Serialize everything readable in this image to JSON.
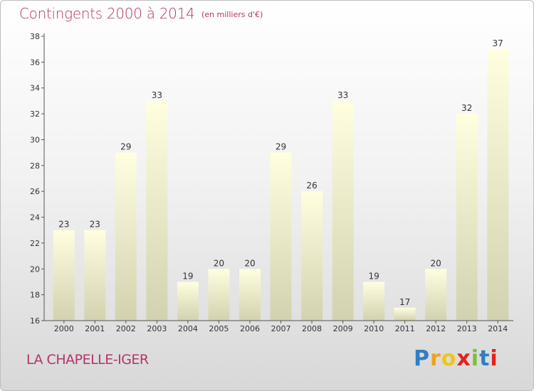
{
  "header": {
    "title": "Contingents 2000 à 2014",
    "subtitle": "(en milliers d'€)"
  },
  "footer": {
    "commune": "LA CHAPELLE-IGER",
    "logo": {
      "letters": [
        "P",
        "r",
        "o",
        "x",
        "i",
        "t",
        "i"
      ],
      "colors": [
        "#2f7fc1",
        "#f0a01e",
        "#f0c419",
        "#e2231a",
        "#7bbf3a",
        "#2f7fc1",
        "#e2231a"
      ]
    }
  },
  "chart_data": {
    "type": "bar",
    "title": "Contingents 2000 à 2014",
    "subtitle": "(en milliers d'€)",
    "xlabel": "",
    "ylabel": "",
    "categories": [
      "2000",
      "2001",
      "2002",
      "2003",
      "2004",
      "2005",
      "2006",
      "2007",
      "2008",
      "2009",
      "2010",
      "2011",
      "2012",
      "2013",
      "2014"
    ],
    "values": [
      23,
      23,
      29,
      33,
      19,
      20,
      20,
      29,
      26,
      33,
      19,
      17,
      20,
      32,
      37
    ],
    "ylim": [
      16,
      38
    ],
    "yticks": [
      16,
      18,
      20,
      22,
      24,
      26,
      28,
      30,
      32,
      34,
      36,
      38
    ],
    "grid": false,
    "legend": "none",
    "colors": {
      "bar_top": "#ffffe0",
      "bar_bottom": "#d2d2b0",
      "axis": "#555555",
      "text": "#333333"
    }
  }
}
